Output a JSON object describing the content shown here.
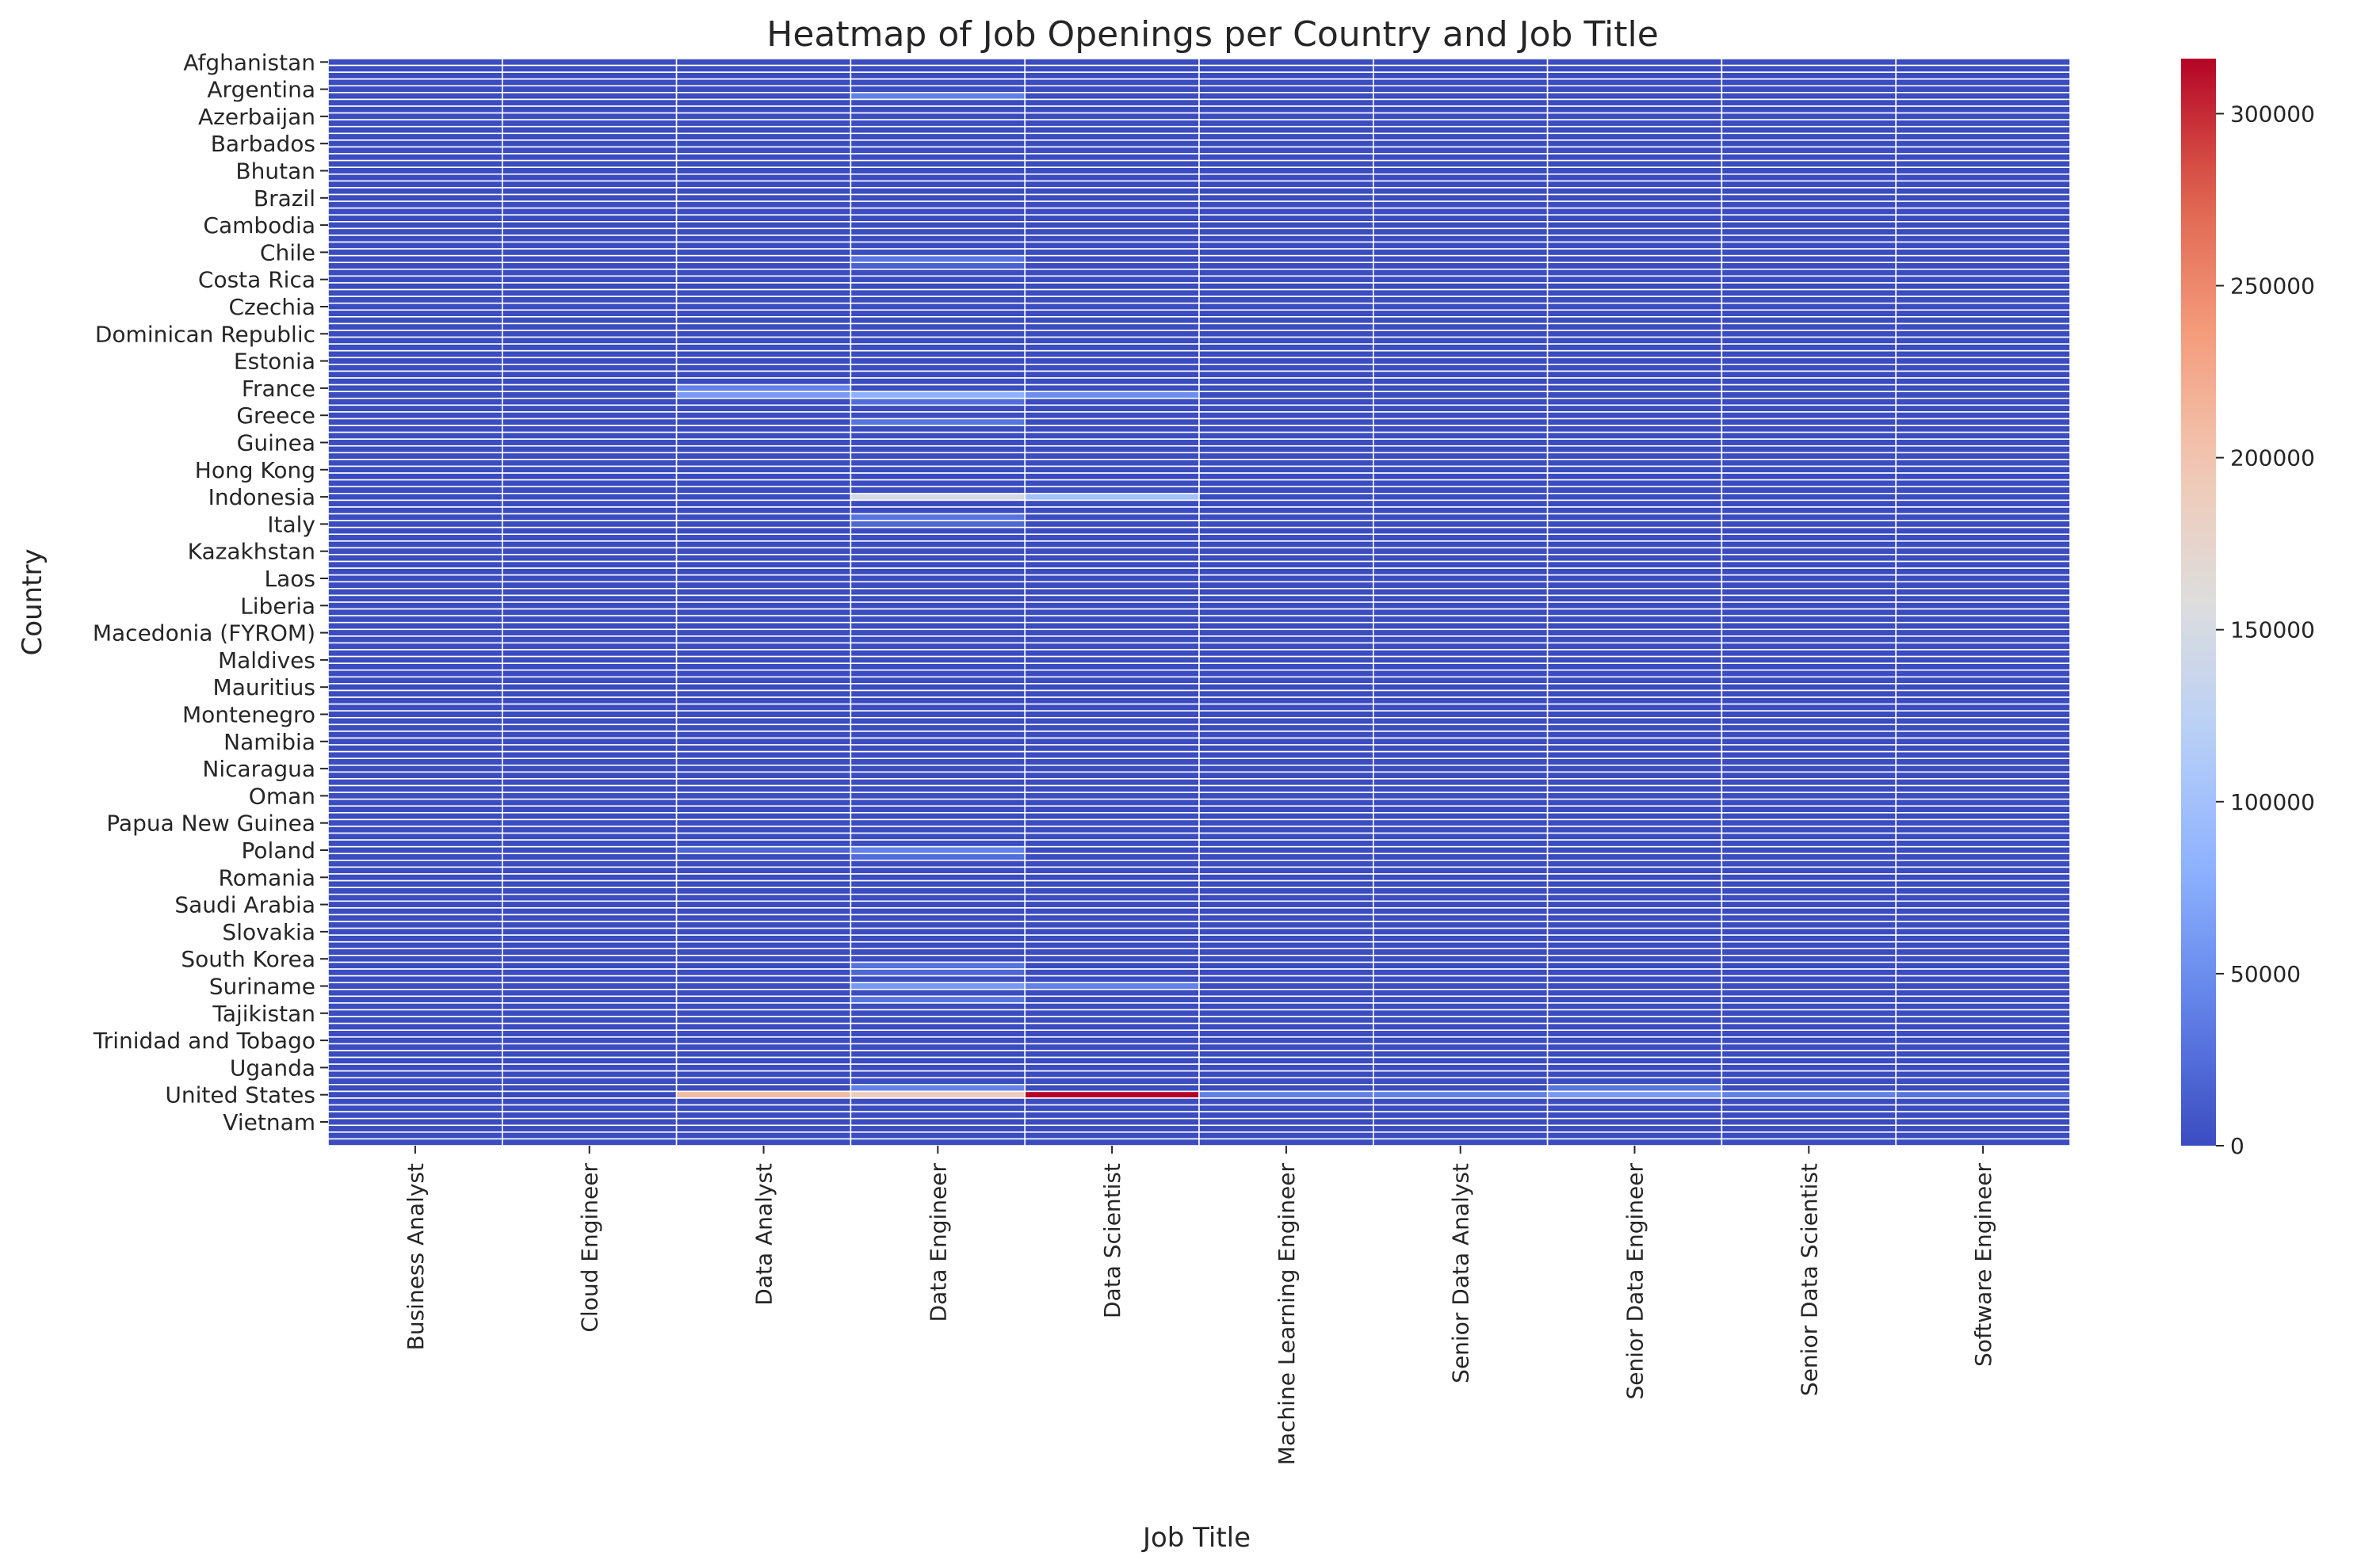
{
  "chart_data": {
    "type": "heatmap",
    "title": "Heatmap of Job Openings per Country and Job Title",
    "xlabel": "Job Title",
    "ylabel": "Country",
    "colormap": "coolwarm",
    "cell_border_color": "#ffffff",
    "x_categories": [
      "Business Analyst",
      "Cloud Engineer",
      "Data Analyst",
      "Data Engineer",
      "Data Scientist",
      "Machine Learning Engineer",
      "Senior Data Analyst",
      "Senior Data Engineer",
      "Senior Data Scientist",
      "Software Engineer"
    ],
    "y_tick_labels": [
      "Afghanistan",
      "Argentina",
      "Azerbaijan",
      "Barbados",
      "Bhutan",
      "Brazil",
      "Cambodia",
      "Chile",
      "Costa Rica",
      "Czechia",
      "Dominican Republic",
      "Estonia",
      "France",
      "Greece",
      "Guinea",
      "Hong Kong",
      "Indonesia",
      "Italy",
      "Kazakhstan",
      "Laos",
      "Liberia",
      "Macedonia (FYROM)",
      "Maldives",
      "Mauritius",
      "Montenegro",
      "Namibia",
      "Nicaragua",
      "Oman",
      "Papua New Guinea",
      "Poland",
      "Romania",
      "Saudi Arabia",
      "Slovakia",
      "South Korea",
      "Suriname",
      "Tajikistan",
      "Trinidad and Tobago",
      "Uganda",
      "United States",
      "Vietnam"
    ],
    "row_count": 160,
    "vmin": 0,
    "vmax": 316000,
    "colorbar_ticks": [
      0,
      50000,
      100000,
      150000,
      200000,
      250000,
      300000
    ],
    "nonzero_cells": [
      {
        "row": 5,
        "col": 3,
        "value": 40000
      },
      {
        "row": 29,
        "col": 3,
        "value": 30000
      },
      {
        "row": 30,
        "col": 3,
        "value": 15000
      },
      {
        "row": 48,
        "col": 2,
        "value": 40000
      },
      {
        "row": 49,
        "col": 2,
        "value": 60000
      },
      {
        "row": 49,
        "col": 3,
        "value": 80000
      },
      {
        "row": 49,
        "col": 4,
        "value": 50000
      },
      {
        "row": 50,
        "col": 3,
        "value": 25000
      },
      {
        "row": 53,
        "col": 3,
        "value": 30000
      },
      {
        "row": 64,
        "col": 3,
        "value": 150000
      },
      {
        "row": 64,
        "col": 4,
        "value": 100000
      },
      {
        "row": 67,
        "col": 3,
        "value": 30000
      },
      {
        "row": 68,
        "col": 3,
        "value": 20000
      },
      {
        "row": 116,
        "col": 2,
        "value": 20000
      },
      {
        "row": 116,
        "col": 3,
        "value": 40000
      },
      {
        "row": 117,
        "col": 3,
        "value": 25000
      },
      {
        "row": 133,
        "col": 3,
        "value": 30000
      },
      {
        "row": 134,
        "col": 3,
        "value": 20000
      },
      {
        "row": 136,
        "col": 3,
        "value": 60000
      },
      {
        "row": 136,
        "col": 4,
        "value": 40000
      },
      {
        "row": 138,
        "col": 3,
        "value": 30000
      },
      {
        "row": 152,
        "col": 2,
        "value": 210000
      },
      {
        "row": 152,
        "col": 3,
        "value": 190000
      },
      {
        "row": 152,
        "col": 4,
        "value": 316000
      },
      {
        "row": 152,
        "col": 5,
        "value": 40000
      },
      {
        "row": 152,
        "col": 6,
        "value": 40000
      },
      {
        "row": 152,
        "col": 7,
        "value": 60000
      },
      {
        "row": 152,
        "col": 8,
        "value": 40000
      },
      {
        "row": 152,
        "col": 9,
        "value": 30000
      },
      {
        "row": 151,
        "col": 3,
        "value": 40000
      },
      {
        "row": 151,
        "col": 7,
        "value": 30000
      }
    ]
  }
}
